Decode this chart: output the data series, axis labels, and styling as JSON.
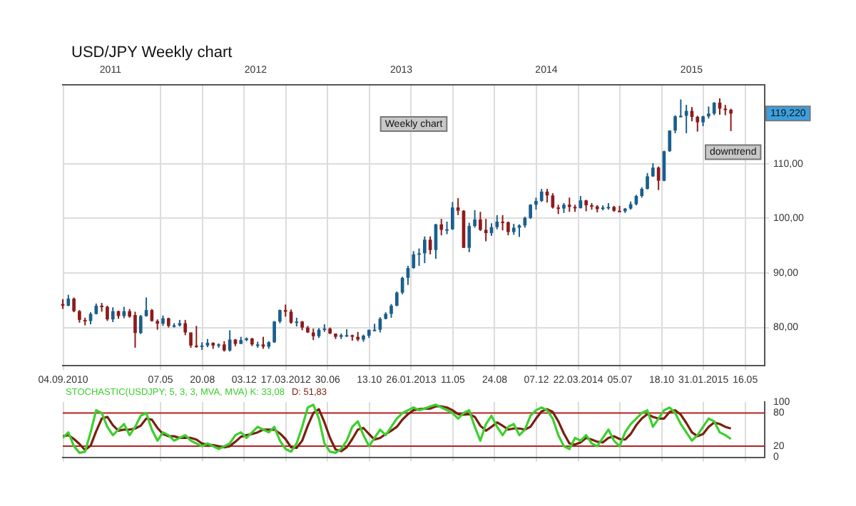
{
  "chart_data": [
    {
      "type": "candlestick",
      "title": "USD/JPY Weekly chart",
      "x": [
        "2010-09-03",
        "2010-09-17",
        "2010-10-01",
        "2010-10-15",
        "2010-10-29",
        "2010-11-12",
        "2010-11-26",
        "2010-12-10",
        "2010-12-24",
        "2011-01-07",
        "2011-01-21",
        "2011-02-04",
        "2011-02-18",
        "2011-03-04",
        "2011-03-18",
        "2011-04-01",
        "2011-04-15",
        "2011-04-29",
        "2011-05-13",
        "2011-05-27",
        "2011-06-10",
        "2011-06-24",
        "2011-07-08",
        "2011-07-22",
        "2011-08-05",
        "2011-08-19",
        "2011-09-02",
        "2011-09-16",
        "2011-09-30",
        "2011-10-14",
        "2011-10-28",
        "2011-11-11",
        "2011-11-25",
        "2011-12-09",
        "2011-12-23",
        "2012-01-06",
        "2012-01-20",
        "2012-02-03",
        "2012-02-17",
        "2012-03-02",
        "2012-03-16",
        "2012-03-30",
        "2012-04-13",
        "2012-04-27",
        "2012-05-11",
        "2012-05-25",
        "2012-06-08",
        "2012-06-22",
        "2012-07-06",
        "2012-07-20",
        "2012-08-03",
        "2012-08-17",
        "2012-08-31",
        "2012-09-14",
        "2012-09-28",
        "2012-10-12",
        "2012-10-26",
        "2012-11-09",
        "2012-11-23",
        "2012-12-07",
        "2012-12-21",
        "2013-01-04",
        "2013-01-18",
        "2013-02-01",
        "2013-02-15",
        "2013-03-01",
        "2013-03-15",
        "2013-03-29",
        "2013-04-12",
        "2013-04-26",
        "2013-05-10",
        "2013-05-24",
        "2013-06-07",
        "2013-06-21",
        "2013-07-05",
        "2013-07-19",
        "2013-08-02",
        "2013-08-16",
        "2013-08-30",
        "2013-09-13",
        "2013-09-27",
        "2013-10-11",
        "2013-10-25",
        "2013-11-08",
        "2013-11-22",
        "2013-12-06",
        "2013-12-20",
        "2014-01-03",
        "2014-01-17",
        "2014-01-31",
        "2014-02-14",
        "2014-02-28",
        "2014-03-14",
        "2014-03-28",
        "2014-04-11",
        "2014-04-25",
        "2014-05-09",
        "2014-05-23",
        "2014-06-06",
        "2014-06-20",
        "2014-07-04",
        "2014-07-18",
        "2014-08-01",
        "2014-08-15",
        "2014-08-29",
        "2014-09-12",
        "2014-09-26",
        "2014-10-10",
        "2014-10-24",
        "2014-11-07",
        "2014-11-21",
        "2014-12-05",
        "2014-12-19",
        "2015-01-02",
        "2015-01-16",
        "2015-01-30",
        "2015-02-13",
        "2015-02-27",
        "2015-03-13",
        "2015-03-27",
        "2015-04-10"
      ],
      "ohlc": [
        [
          84.3,
          85.2,
          83.4,
          84.0
        ],
        [
          84.0,
          86.0,
          83.9,
          85.3
        ],
        [
          85.3,
          85.5,
          82.8,
          83.0
        ],
        [
          83.0,
          83.2,
          80.9,
          81.4
        ],
        [
          81.4,
          81.8,
          80.4,
          81.2
        ],
        [
          81.2,
          82.8,
          80.6,
          82.5
        ],
        [
          82.5,
          84.4,
          82.4,
          84.0
        ],
        [
          84.0,
          84.5,
          82.9,
          83.8
        ],
        [
          83.8,
          84.0,
          81.2,
          81.5
        ],
        [
          81.5,
          83.7,
          81.0,
          83.0
        ],
        [
          83.0,
          83.1,
          81.6,
          82.1
        ],
        [
          82.1,
          83.8,
          81.7,
          83.0
        ],
        [
          83.0,
          83.4,
          81.8,
          82.0
        ],
        [
          82.3,
          82.9,
          76.3,
          79.0
        ],
        [
          79.0,
          82.3,
          78.8,
          82.1
        ],
        [
          82.1,
          85.5,
          82.0,
          83.2
        ],
        [
          83.2,
          83.4,
          81.1,
          81.2
        ],
        [
          81.2,
          81.5,
          79.6,
          80.7
        ],
        [
          80.7,
          82.2,
          80.3,
          81.7
        ],
        [
          81.7,
          81.8,
          80.0,
          80.3
        ],
        [
          80.3,
          80.8,
          80.0,
          80.4
        ],
        [
          80.4,
          81.4,
          80.2,
          80.8
        ],
        [
          80.8,
          81.4,
          78.6,
          79.1
        ],
        [
          79.1,
          79.1,
          76.3,
          76.7
        ],
        [
          76.7,
          80.3,
          76.3,
          76.6
        ],
        [
          76.6,
          77.3,
          75.9,
          76.7
        ],
        [
          76.7,
          77.9,
          76.4,
          77.2
        ],
        [
          77.2,
          77.3,
          76.1,
          76.7
        ],
        [
          76.7,
          77.1,
          76.3,
          76.9
        ],
        [
          76.9,
          77.5,
          75.6,
          75.8
        ],
        [
          75.8,
          79.5,
          75.6,
          77.8
        ],
        [
          77.8,
          77.9,
          76.6,
          77.0
        ],
        [
          77.0,
          78.3,
          77.0,
          77.7
        ],
        [
          77.7,
          78.2,
          77.5,
          78.0
        ],
        [
          78.0,
          78.1,
          76.6,
          76.9
        ],
        [
          76.9,
          77.4,
          76.3,
          76.9
        ],
        [
          76.9,
          78.3,
          76.1,
          76.5
        ],
        [
          76.5,
          77.5,
          76.1,
          77.3
        ],
        [
          77.3,
          81.2,
          77.2,
          81.1
        ],
        [
          81.1,
          83.3,
          80.8,
          83.2
        ],
        [
          83.2,
          84.2,
          82.0,
          82.9
        ],
        [
          82.9,
          83.3,
          80.7,
          80.9
        ],
        [
          80.9,
          81.8,
          80.2,
          81.1
        ],
        [
          81.1,
          81.2,
          79.5,
          80.0
        ],
        [
          80.0,
          80.3,
          79.0,
          79.1
        ],
        [
          79.1,
          79.8,
          77.7,
          78.4
        ],
        [
          78.4,
          79.9,
          78.1,
          79.6
        ],
        [
          79.6,
          80.6,
          79.2,
          79.8
        ],
        [
          79.8,
          80.0,
          78.8,
          78.9
        ],
        [
          78.9,
          78.9,
          77.9,
          78.3
        ],
        [
          78.3,
          78.9,
          77.9,
          78.6
        ],
        [
          78.6,
          79.7,
          78.3,
          78.6
        ],
        [
          78.6,
          78.7,
          77.6,
          78.3
        ],
        [
          78.3,
          79.2,
          77.5,
          77.8
        ],
        [
          77.8,
          78.7,
          77.4,
          78.5
        ],
        [
          78.5,
          79.6,
          78.1,
          79.6
        ],
        [
          79.6,
          80.7,
          79.3,
          79.6
        ],
        [
          79.6,
          81.9,
          79.1,
          81.6
        ],
        [
          81.6,
          82.8,
          81.5,
          82.5
        ],
        [
          82.5,
          84.3,
          81.8,
          84.0
        ],
        [
          84.0,
          86.6,
          83.9,
          86.4
        ],
        [
          86.4,
          89.3,
          86.1,
          89.1
        ],
        [
          89.1,
          91.3,
          87.8,
          90.9
        ],
        [
          90.9,
          94.0,
          90.8,
          93.4
        ],
        [
          93.4,
          94.5,
          91.3,
          93.6
        ],
        [
          93.6,
          96.7,
          91.8,
          96.1
        ],
        [
          96.1,
          96.7,
          93.4,
          94.2
        ],
        [
          94.2,
          99.0,
          92.6,
          98.9
        ],
        [
          98.9,
          99.9,
          96.9,
          97.9
        ],
        [
          97.9,
          99.4,
          97.1,
          98.0
        ],
        [
          98.0,
          103.0,
          97.9,
          102.0
        ],
        [
          102.0,
          103.7,
          100.6,
          101.4
        ],
        [
          101.4,
          101.5,
          94.6,
          94.6
        ],
        [
          94.6,
          99.2,
          93.8,
          98.6
        ],
        [
          98.6,
          101.5,
          98.3,
          99.8
        ],
        [
          99.8,
          101.2,
          97.7,
          97.9
        ],
        [
          97.9,
          99.9,
          95.8,
          97.3
        ],
        [
          97.3,
          99.1,
          96.8,
          98.4
        ],
        [
          98.4,
          100.6,
          98.0,
          99.4
        ],
        [
          99.4,
          100.6,
          97.8,
          99.3
        ],
        [
          99.3,
          99.4,
          96.9,
          97.5
        ],
        [
          97.5,
          99.0,
          97.0,
          98.3
        ],
        [
          98.3,
          98.9,
          96.6,
          98.7
        ],
        [
          98.7,
          100.3,
          98.3,
          100.1
        ],
        [
          100.1,
          102.6,
          99.9,
          102.5
        ],
        [
          102.5,
          103.8,
          101.6,
          103.2
        ],
        [
          103.2,
          105.4,
          103.0,
          104.9
        ],
        [
          104.9,
          105.4,
          102.9,
          104.2
        ],
        [
          104.2,
          104.6,
          101.8,
          102.0
        ],
        [
          102.0,
          102.5,
          100.8,
          101.8
        ],
        [
          101.8,
          102.8,
          101.0,
          102.5
        ],
        [
          102.5,
          103.8,
          101.2,
          102.1
        ],
        [
          102.1,
          102.5,
          101.2,
          101.9
        ],
        [
          101.9,
          104.1,
          101.8,
          103.3
        ],
        [
          103.3,
          103.4,
          101.3,
          102.4
        ],
        [
          102.4,
          102.8,
          101.6,
          102.2
        ],
        [
          102.2,
          102.4,
          101.1,
          101.7
        ],
        [
          101.7,
          102.4,
          101.5,
          102.0
        ],
        [
          102.0,
          102.8,
          101.6,
          102.1
        ],
        [
          102.1,
          102.3,
          101.2,
          101.4
        ],
        [
          101.4,
          102.3,
          101.1,
          101.3
        ],
        [
          101.3,
          101.9,
          101.0,
          101.8
        ],
        [
          101.8,
          103.1,
          101.6,
          102.6
        ],
        [
          102.6,
          104.3,
          102.4,
          104.1
        ],
        [
          104.1,
          105.7,
          103.8,
          105.4
        ],
        [
          105.4,
          108.3,
          105.3,
          107.7
        ],
        [
          107.7,
          110.1,
          107.6,
          109.3
        ],
        [
          109.3,
          109.5,
          105.2,
          106.9
        ],
        [
          106.9,
          112.4,
          106.8,
          112.3
        ],
        [
          112.3,
          116.1,
          112.2,
          116.1
        ],
        [
          116.1,
          118.9,
          115.6,
          118.7
        ],
        [
          118.7,
          121.8,
          118.5,
          118.8
        ],
        [
          118.8,
          120.8,
          115.6,
          119.7
        ],
        [
          119.7,
          120.4,
          117.8,
          118.6
        ],
        [
          118.6,
          118.8,
          115.9,
          117.6
        ],
        [
          117.6,
          118.8,
          116.9,
          118.7
        ],
        [
          118.7,
          120.5,
          118.3,
          119.2
        ],
        [
          119.2,
          121.3,
          118.9,
          121.2
        ],
        [
          121.2,
          122.0,
          119.0,
          120.1
        ],
        [
          120.1,
          120.8,
          118.9,
          119.9
        ],
        [
          119.9,
          120.1,
          116.0,
          119.2
        ]
      ],
      "xlim": [
        "2010-09-03",
        "2015-07-04"
      ],
      "xticks": [
        {
          "value": "2010-09-04",
          "label": "04.09.2010"
        },
        {
          "value": "2011-05-07",
          "label": "07.05"
        },
        {
          "value": "2011-08-20",
          "label": "20.08"
        },
        {
          "value": "2011-12-03",
          "label": "03.12"
        },
        {
          "value": "2012-03-17",
          "label": "17.03.2012"
        },
        {
          "value": "2012-06-30",
          "label": "30.06"
        },
        {
          "value": "2012-10-13",
          "label": "13.10"
        },
        {
          "value": "2013-01-26",
          "label": "26.01.2013"
        },
        {
          "value": "2013-05-11",
          "label": "11.05"
        },
        {
          "value": "2013-08-24",
          "label": "24.08"
        },
        {
          "value": "2013-12-07",
          "label": "07.12"
        },
        {
          "value": "2014-03-22",
          "label": "22.03.2014"
        },
        {
          "value": "2014-07-05",
          "label": "05.07"
        },
        {
          "value": "2014-10-18",
          "label": "18.10"
        },
        {
          "value": "2015-01-31",
          "label": "31.01.2015"
        },
        {
          "value": "2015-05-16",
          "label": "16.05"
        }
      ],
      "x2lim": [
        "2010-09-03",
        "2015-07-04"
      ],
      "x2ticks": [
        {
          "value": "2011-01-01",
          "label": "2011"
        },
        {
          "value": "2012-01-01",
          "label": "2012"
        },
        {
          "value": "2013-01-01",
          "label": "2013"
        },
        {
          "value": "2014-01-01",
          "label": "2014"
        },
        {
          "value": "2015-01-01",
          "label": "2015"
        }
      ],
      "ylim": [
        73,
        124.5
      ],
      "yticks": [
        {
          "value": 80,
          "label": "80,00"
        },
        {
          "value": 90,
          "label": "90,00"
        },
        {
          "value": 100,
          "label": "100,00"
        },
        {
          "value": 110,
          "label": "110,00"
        }
      ],
      "grid": true,
      "annotations": [
        "Weekly chart",
        "downtrend",
        {
          "text": "119,220",
          "y": 119.22
        }
      ]
    },
    {
      "type": "line",
      "x": [
        "2010-09-03",
        "2010-09-17",
        "2010-10-01",
        "2010-10-15",
        "2010-10-29",
        "2010-11-12",
        "2010-11-26",
        "2010-12-10",
        "2010-12-24",
        "2011-01-07",
        "2011-01-21",
        "2011-02-04",
        "2011-02-18",
        "2011-03-04",
        "2011-03-18",
        "2011-04-01",
        "2011-04-15",
        "2011-04-29",
        "2011-05-13",
        "2011-05-27",
        "2011-06-10",
        "2011-06-24",
        "2011-07-08",
        "2011-07-22",
        "2011-08-05",
        "2011-08-19",
        "2011-09-02",
        "2011-09-16",
        "2011-09-30",
        "2011-10-14",
        "2011-10-28",
        "2011-11-11",
        "2011-11-25",
        "2011-12-09",
        "2011-12-23",
        "2012-01-06",
        "2012-01-20",
        "2012-02-03",
        "2012-02-17",
        "2012-03-02",
        "2012-03-16",
        "2012-03-30",
        "2012-04-13",
        "2012-04-27",
        "2012-05-11",
        "2012-05-25",
        "2012-06-08",
        "2012-06-22",
        "2012-07-06",
        "2012-07-20",
        "2012-08-03",
        "2012-08-17",
        "2012-08-31",
        "2012-09-14",
        "2012-09-28",
        "2012-10-12",
        "2012-10-26",
        "2012-11-09",
        "2012-11-23",
        "2012-12-07",
        "2012-12-21",
        "2013-01-04",
        "2013-01-18",
        "2013-02-01",
        "2013-02-15",
        "2013-03-01",
        "2013-03-15",
        "2013-03-29",
        "2013-04-12",
        "2013-04-26",
        "2013-05-10",
        "2013-05-24",
        "2013-06-07",
        "2013-06-21",
        "2013-07-05",
        "2013-07-19",
        "2013-08-02",
        "2013-08-16",
        "2013-08-30",
        "2013-09-13",
        "2013-09-27",
        "2013-10-11",
        "2013-10-25",
        "2013-11-08",
        "2013-11-22",
        "2013-12-06",
        "2013-12-20",
        "2014-01-03",
        "2014-01-17",
        "2014-01-31",
        "2014-02-14",
        "2014-02-28",
        "2014-03-14",
        "2014-03-28",
        "2014-04-11",
        "2014-04-25",
        "2014-05-09",
        "2014-05-23",
        "2014-06-06",
        "2014-06-20",
        "2014-07-04",
        "2014-07-18",
        "2014-08-01",
        "2014-08-15",
        "2014-08-29",
        "2014-09-12",
        "2014-09-26",
        "2014-10-10",
        "2014-10-24",
        "2014-11-07",
        "2014-11-21",
        "2014-12-05",
        "2014-12-19",
        "2015-01-02",
        "2015-01-16",
        "2015-01-30",
        "2015-02-13",
        "2015-02-27",
        "2015-03-13",
        "2015-03-27",
        "2015-04-10"
      ],
      "series": [
        {
          "name": "STOCHASTIC(USDJPY; 5, 3, 3, MVA, MVA) K: 33,08",
          "color": "#3ccf2e",
          "values": [
            35,
            45,
            20,
            8,
            10,
            45,
            85,
            80,
            55,
            40,
            50,
            60,
            40,
            55,
            75,
            80,
            50,
            30,
            45,
            40,
            30,
            35,
            40,
            30,
            25,
            20,
            25,
            20,
            15,
            20,
            25,
            40,
            45,
            35,
            45,
            55,
            50,
            45,
            55,
            30,
            15,
            10,
            25,
            55,
            90,
            95,
            70,
            25,
            10,
            8,
            15,
            30,
            55,
            65,
            40,
            20,
            35,
            50,
            40,
            55,
            70,
            80,
            85,
            90,
            85,
            88,
            92,
            95,
            90,
            85,
            80,
            70,
            80,
            85,
            55,
            30,
            60,
            75,
            55,
            40,
            55,
            60,
            40,
            50,
            75,
            85,
            90,
            85,
            70,
            40,
            20,
            15,
            35,
            30,
            40,
            25,
            20,
            35,
            50,
            30,
            20,
            45,
            60,
            70,
            80,
            85,
            55,
            70,
            85,
            90,
            80,
            60,
            45,
            30,
            40,
            55,
            70,
            65,
            45,
            40,
            33
          ]
        },
        {
          "name": "D: 51,83",
          "color": "#7a1f10",
          "values": [
            38,
            40,
            33,
            24,
            13,
            21,
            47,
            70,
            73,
            58,
            48,
            50,
            50,
            52,
            57,
            70,
            68,
            53,
            42,
            38,
            38,
            35,
            35,
            35,
            32,
            25,
            23,
            22,
            20,
            18,
            20,
            28,
            37,
            40,
            42,
            45,
            50,
            50,
            50,
            43,
            33,
            18,
            17,
            30,
            57,
            80,
            87,
            63,
            35,
            14,
            11,
            18,
            33,
            50,
            53,
            42,
            32,
            35,
            42,
            48,
            55,
            68,
            78,
            85,
            87,
            88,
            88,
            92,
            92,
            90,
            85,
            78,
            77,
            78,
            73,
            57,
            48,
            55,
            63,
            57,
            50,
            52,
            52,
            50,
            55,
            70,
            83,
            87,
            82,
            65,
            43,
            25,
            23,
            27,
            35,
            32,
            28,
            27,
            35,
            38,
            33,
            32,
            42,
            58,
            70,
            78,
            73,
            70,
            70,
            82,
            85,
            77,
            62,
            45,
            38,
            42,
            55,
            63,
            60,
            55,
            52
          ]
        }
      ],
      "xlim": [
        "2010-09-03",
        "2015-07-04"
      ],
      "xticks": [
        {
          "value": "2010-09-04",
          "label": null
        },
        {
          "value": "2011-05-07",
          "label": null
        },
        {
          "value": "2011-08-20",
          "label": null
        },
        {
          "value": "2011-12-03",
          "label": null
        },
        {
          "value": "2012-03-17",
          "label": null
        },
        {
          "value": "2012-06-30",
          "label": null
        },
        {
          "value": "2012-10-13",
          "label": null
        },
        {
          "value": "2013-01-26",
          "label": null
        },
        {
          "value": "2013-05-11",
          "label": null
        },
        {
          "value": "2013-08-24",
          "label": null
        },
        {
          "value": "2013-12-07",
          "label": null
        },
        {
          "value": "2014-03-22",
          "label": null
        },
        {
          "value": "2014-07-05",
          "label": null
        },
        {
          "value": "2014-10-18",
          "label": null
        },
        {
          "value": "2015-01-31",
          "label": null
        },
        {
          "value": "2015-05-16",
          "label": null
        }
      ],
      "ylim": [
        0,
        100
      ],
      "yticks": [
        0,
        20,
        80,
        100
      ],
      "ref_lines": [
        {
          "axis": "y",
          "value": 80,
          "color": "#b22222"
        },
        {
          "axis": "y",
          "value": 20,
          "color": "#b22222"
        }
      ],
      "grid": "x",
      "legend": "top left",
      "marker": "none",
      "tick_labels": "y"
    }
  ]
}
